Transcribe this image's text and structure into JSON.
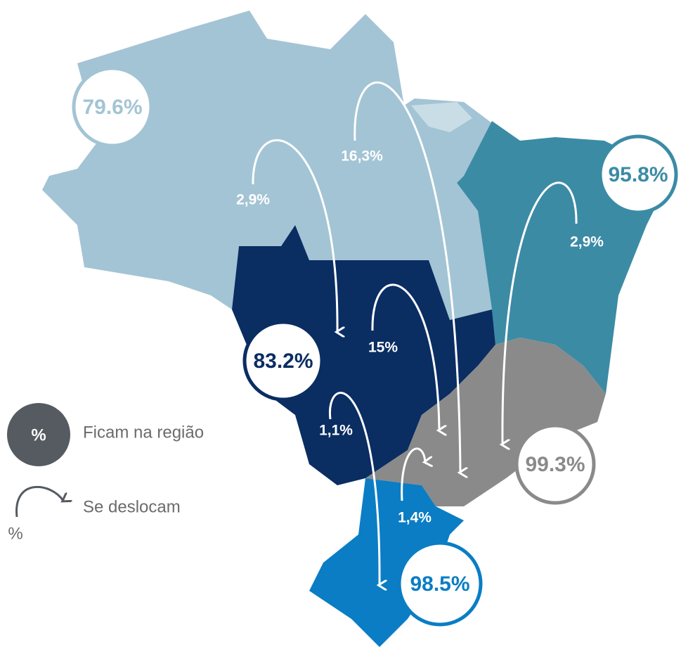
{
  "regions": [
    {
      "label": "79.6%"
    },
    {
      "label": "83.2%"
    },
    {
      "label": "95.8%"
    },
    {
      "label": "99.3%"
    },
    {
      "label": "98.5%"
    }
  ],
  "flows": [
    {
      "label": "2,9%"
    },
    {
      "label": "16,3%"
    },
    {
      "label": "2,9%"
    },
    {
      "label": "15%"
    },
    {
      "label": "1,1%"
    },
    {
      "label": "1,4%"
    }
  ],
  "legend": {
    "stay_symbol": "%",
    "stay_label": "Ficam na região",
    "move_symbol": "%",
    "move_label": "Se deslocam"
  }
}
